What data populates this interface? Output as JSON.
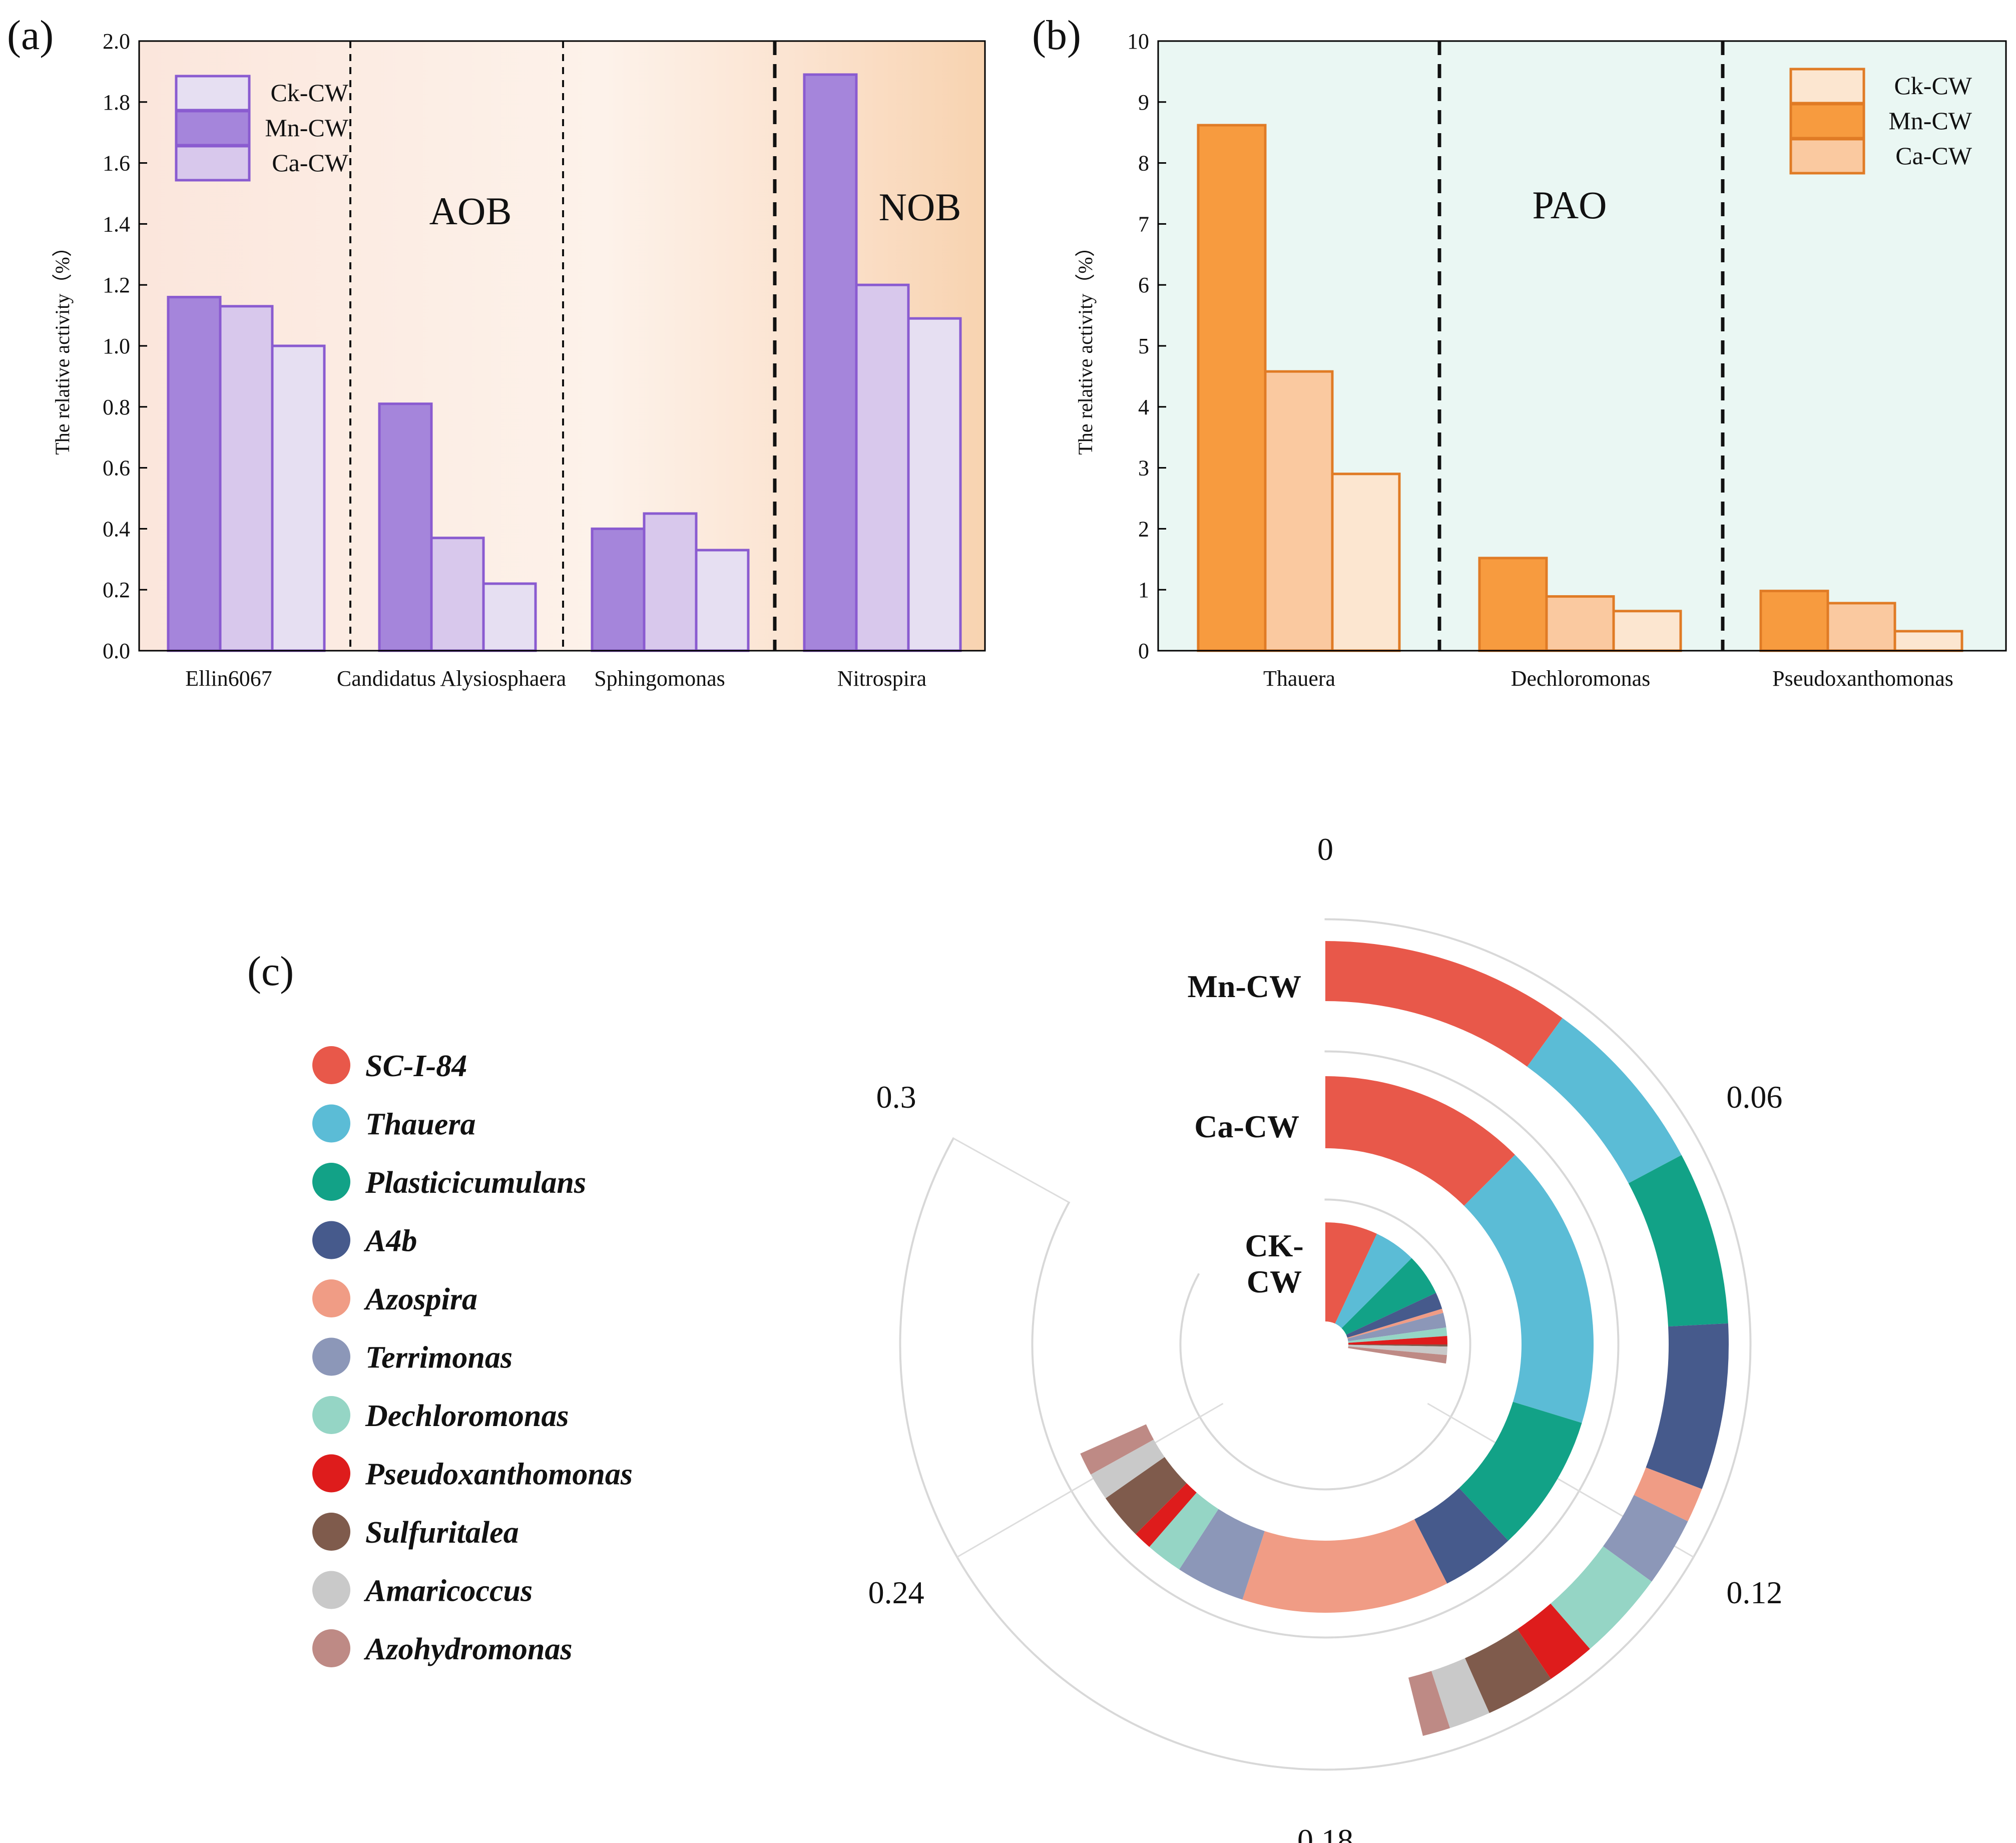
{
  "colors": {
    "purple_dark": "#A585DB",
    "purple_mid": "#D8C8EC",
    "purple_light": "#E6DFF2",
    "purple_edge": "#8A5BD0",
    "orange_dark": "#F79B3F",
    "orange_mid": "#FAC9A0",
    "orange_light": "#FCE6D0",
    "orange_edge": "#E07B25"
  },
  "chart_data": [
    {
      "panel": "(a)",
      "type": "bar",
      "ylabel": "The relative activity（%）",
      "ylim": [
        0,
        2.0
      ],
      "yticks": [
        "0.0",
        "0.2",
        "0.4",
        "0.6",
        "0.8",
        "1.0",
        "1.2",
        "1.4",
        "1.6",
        "1.8",
        "2.0"
      ],
      "categories": [
        "Ellin6067",
        "Candidatus Alysiosphaera",
        "Sphingomonas",
        "Nitrospira"
      ],
      "series": [
        {
          "name": "Mn-CW",
          "values": [
            1.16,
            0.81,
            0.4,
            1.89
          ]
        },
        {
          "name": "Ca-CW",
          "values": [
            1.13,
            0.37,
            0.45,
            1.2
          ]
        },
        {
          "name": "Ck-CW",
          "values": [
            1.0,
            0.22,
            0.33,
            1.09
          ]
        }
      ],
      "legend": [
        "Ck-CW",
        "Mn-CW",
        "Ca-CW"
      ],
      "groups": [
        "AOB",
        "NOB"
      ]
    },
    {
      "panel": "(b)",
      "type": "bar",
      "ylabel": "The relative activity（%）",
      "ylim": [
        0,
        10
      ],
      "yticks": [
        "0",
        "1",
        "2",
        "3",
        "4",
        "5",
        "6",
        "7",
        "8",
        "9",
        "10"
      ],
      "categories": [
        "Thauera",
        "Dechloromonas",
        "Pseudoxanthomonas"
      ],
      "series": [
        {
          "name": "Mn-CW",
          "values": [
            8.62,
            1.52,
            0.98
          ]
        },
        {
          "name": "Ca-CW",
          "values": [
            4.58,
            0.89,
            0.78
          ]
        },
        {
          "name": "Ck-CW",
          "values": [
            2.9,
            0.65,
            0.32
          ]
        }
      ],
      "legend": [
        "Ck-CW",
        "Mn-CW",
        "Ca-CW"
      ],
      "groups": [
        "PAO"
      ]
    },
    {
      "panel": "(c)",
      "type": "radial-stacked-bar",
      "axis_range": [
        0,
        0.36
      ],
      "axis_ticks": [
        "0",
        "0.06",
        "0.12",
        "0.18",
        "0.24",
        "0.3"
      ],
      "rings": [
        "Mn-CW",
        "Ca-CW",
        "CK-\nCW"
      ],
      "genera": [
        "SC-I-84",
        "Thauera",
        "Plasticicumulans",
        "A4b",
        "Azospira",
        "Terrimonas",
        "Dechloromonas",
        "Pseudoxanthomonas",
        "Sulfuritalea",
        "Amaricoccus",
        "Azohydromonas"
      ],
      "genus_colors": [
        "#E8584A",
        "#5BBCD6",
        "#12A287",
        "#465A8C",
        "#F09C85",
        "#8C97B8",
        "#95D5C5",
        "#DE1C1C",
        "#7F5B4C",
        "#C9C9C9",
        "#BE8A85"
      ],
      "series": [
        {
          "name": "Mn-CW",
          "values": [
            0.036,
            0.026,
            0.025,
            0.024,
            0.005,
            0.01,
            0.013,
            0.007,
            0.01,
            0.006,
            0.004
          ]
        },
        {
          "name": "Ca-CW",
          "values": [
            0.045,
            0.062,
            0.03,
            0.016,
            0.045,
            0.015,
            0.008,
            0.004,
            0.01,
            0.006,
            0.005
          ]
        },
        {
          "name": "CK-CW",
          "values": [
            0.025,
            0.02,
            0.02,
            0.008,
            0.002,
            0.007,
            0.004,
            0.004,
            0.001,
            0.004,
            0.004
          ]
        }
      ]
    }
  ]
}
